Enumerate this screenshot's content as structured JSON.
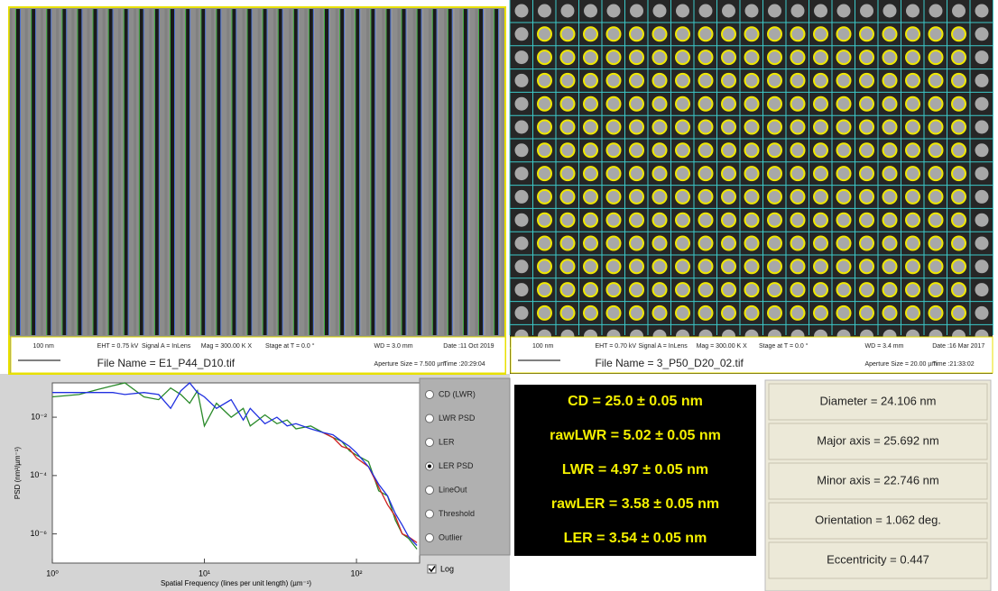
{
  "left_image": {
    "row1": [
      "100 nm",
      "EHT = 0.75 kV",
      "Signal A = InLens",
      "Mag = 300.00 K X",
      "Stage at T = 0.0 °",
      "WD = 3.0 mm",
      "Date :11 Oct 2019"
    ],
    "file_name": "File Name = E1_P44_D10.tif",
    "row2": [
      "Aperture Size = 7.500 µm",
      "Time :20:29:04"
    ]
  },
  "right_image": {
    "row1": [
      "100 nm",
      "EHT = 0.70 kV",
      "Signal A = InLens",
      "Mag = 300.00 K X",
      "Stage at T = 0.0 °",
      "WD = 3.4 mm",
      "Date :16 Mar 2017"
    ],
    "file_name": "File Name = 3_P50_D20_02.tif",
    "row2": [
      "Aperture Size = 20.00 µm",
      "Time :21:33:02"
    ]
  },
  "chart_data": {
    "type": "line",
    "x_label": "Spatial Frequency (lines per unit length) (µm⁻¹)",
    "y_label": "PSD (nm²/µm⁻¹)",
    "log_x": true,
    "log_y": true,
    "x": [
      1,
      1.5,
      2,
      2.5,
      3,
      4,
      5,
      6,
      7,
      8,
      9,
      10,
      12,
      15,
      18,
      20,
      25,
      30,
      35,
      40,
      50,
      60,
      70,
      80,
      90,
      100,
      120,
      140,
      160,
      180,
      200,
      220,
      250
    ],
    "series": [
      {
        "color": "#2a8a2a",
        "values": [
          0.05,
          0.06,
          0.09,
          0.12,
          0.15,
          0.05,
          0.04,
          0.1,
          0.06,
          0.03,
          0.08,
          0.005,
          0.03,
          0.01,
          0.02,
          0.005,
          0.012,
          0.006,
          0.008,
          0.004,
          0.005,
          0.003,
          0.002,
          0.0015,
          0.0007,
          0.0005,
          0.0003,
          3e-05,
          2e-05,
          3e-06,
          1e-06,
          7e-07,
          3e-07
        ]
      },
      {
        "color": "#d02020",
        "values": [
          null,
          null,
          null,
          null,
          null,
          null,
          null,
          null,
          null,
          null,
          null,
          null,
          null,
          null,
          null,
          null,
          null,
          null,
          null,
          null,
          null,
          0.003,
          0.002,
          0.001,
          0.0008,
          0.0004,
          0.0002,
          4e-05,
          1e-05,
          4e-06,
          1e-06,
          8e-07,
          5e-07
        ]
      },
      {
        "color": "#2030e0",
        "values": [
          0.07,
          0.07,
          0.07,
          0.07,
          0.06,
          0.07,
          0.06,
          0.02,
          0.08,
          0.15,
          0.07,
          0.05,
          0.02,
          0.04,
          0.008,
          0.02,
          0.006,
          0.01,
          0.005,
          0.006,
          0.004,
          0.003,
          0.0025,
          0.0015,
          0.001,
          0.0006,
          0.0002,
          5e-05,
          2e-05,
          5e-06,
          2e-06,
          8e-07,
          4e-07
        ]
      }
    ],
    "xlim": [
      1,
      260
    ],
    "ylim": [
      1e-07,
      0.15
    ],
    "xticks": [
      {
        "value": 1,
        "label": "10⁰"
      },
      {
        "value": 10,
        "label": "10¹"
      },
      {
        "value": 100,
        "label": "10²"
      }
    ],
    "yticks": [
      {
        "value": 0.01,
        "label": "10⁻²"
      },
      {
        "value": 0.0001,
        "label": "10⁻⁴"
      },
      {
        "value": 1e-06,
        "label": "10⁻⁶"
      }
    ]
  },
  "plot_options": {
    "options": [
      "CD (LWR)",
      "LWR PSD",
      "LER",
      "LER PSD",
      "LineOut",
      "Threshold",
      "Outlier"
    ],
    "selected": 3,
    "log_label": "Log",
    "log_checked": true
  },
  "measurements": {
    "lines": [
      "CD = 25.0 ± 0.05 nm",
      "rawLWR = 5.02 ± 0.05 nm",
      "LWR = 4.97 ± 0.05 nm",
      "rawLER = 3.58 ± 0.05 nm",
      "LER = 3.54 ± 0.05 nm"
    ]
  },
  "ellipse_fit": {
    "lines": [
      "Diameter = 24.106 nm",
      "Major axis = 25.692 nm",
      "Minor axis = 22.746 nm",
      "Orientation = 1.062 deg.",
      "Eccentricity = 0.447"
    ]
  }
}
